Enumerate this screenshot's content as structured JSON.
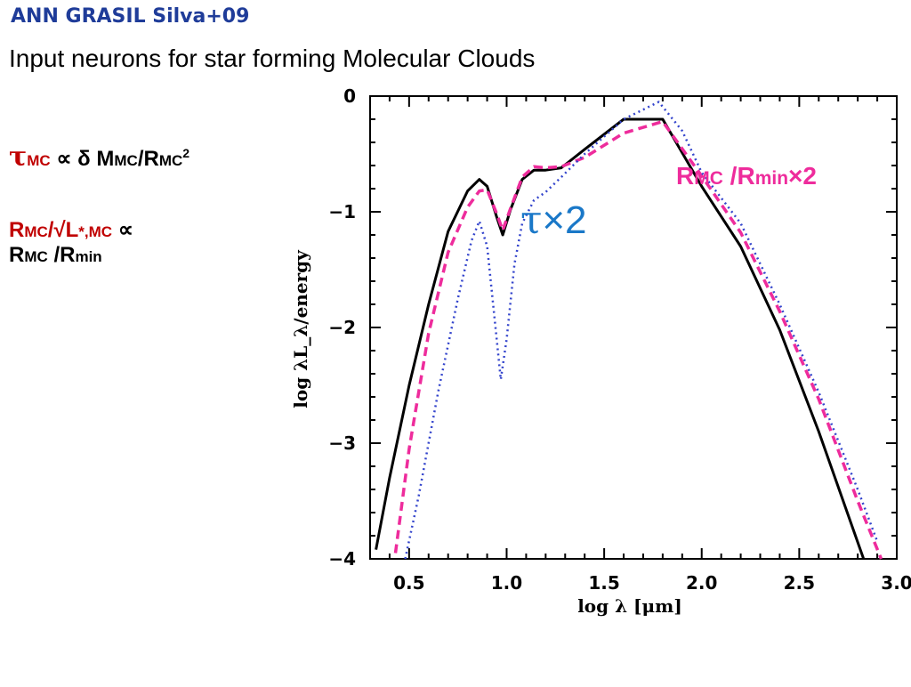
{
  "header": {
    "tag": "ANN GRASIL Silva+09",
    "title": "Input neurons for star forming Molecular Clouds"
  },
  "formulas": {
    "f1": {
      "tau": "τ",
      "tau_sub": "MC",
      "prop": "∝",
      "delta": "δ",
      "m": "M",
      "m_sub": "MC",
      "slash": "/R",
      "r_sub": "MC",
      "exp": "2"
    },
    "f2": {
      "r": "R",
      "r_sub": "MC",
      "slash": "/√L",
      "l_sub": "*,MC",
      "prop": "∝",
      "r2": "R",
      "r2_sub": "MC",
      "mid": " /R",
      "min": "min"
    }
  },
  "annotations": {
    "rmc": {
      "r": "R",
      "sub1": "MC",
      "mid": " /R",
      "sub2": "min",
      "mult": "×2"
    },
    "tau": {
      "tau": "τ",
      "mult": "×2"
    }
  },
  "colors": {
    "header": "#1f3c99",
    "solid": "#000000",
    "dashed": "#ee2c9c",
    "dotted": "#3344cc",
    "formula_red": "#c00000"
  },
  "chart_data": {
    "type": "line",
    "xlabel": "log λ [μm]",
    "ylabel": "log λL_λ/energy",
    "xlim": [
      0.3,
      3.0
    ],
    "ylim": [
      -4,
      0
    ],
    "xticks": [
      "0.5",
      "1.0",
      "1.5",
      "2.0",
      "2.5",
      "3.0"
    ],
    "yticks": [
      "0",
      "−1",
      "−2",
      "−3",
      "−4"
    ],
    "series": [
      {
        "style": "solid",
        "color": "#000000",
        "x": [
          0.33,
          0.4,
          0.5,
          0.6,
          0.7,
          0.8,
          0.86,
          0.9,
          0.95,
          0.98,
          1.02,
          1.08,
          1.14,
          1.2,
          1.28,
          1.4,
          1.6,
          1.8,
          2.0,
          2.2,
          2.4,
          2.6,
          2.83
        ],
        "y": [
          -3.92,
          -3.3,
          -2.5,
          -1.8,
          -1.17,
          -0.82,
          -0.72,
          -0.78,
          -1.05,
          -1.2,
          -0.98,
          -0.72,
          -0.64,
          -0.64,
          -0.62,
          -0.46,
          -0.2,
          -0.2,
          -0.78,
          -1.3,
          -2.02,
          -2.9,
          -4.0
        ]
      },
      {
        "style": "dashed",
        "color": "#ee2c9c",
        "x": [
          0.43,
          0.5,
          0.6,
          0.7,
          0.8,
          0.86,
          0.9,
          0.95,
          0.98,
          1.02,
          1.08,
          1.14,
          1.2,
          1.28,
          1.4,
          1.6,
          1.8,
          2.0,
          2.2,
          2.4,
          2.6,
          2.8,
          2.92
        ],
        "y": [
          -3.95,
          -3.05,
          -2.05,
          -1.35,
          -0.96,
          -0.82,
          -0.81,
          -1.02,
          -1.16,
          -0.97,
          -0.7,
          -0.61,
          -0.62,
          -0.61,
          -0.53,
          -0.32,
          -0.22,
          -0.69,
          -1.18,
          -1.86,
          -2.62,
          -3.5,
          -4.0
        ]
      },
      {
        "style": "dotted",
        "color": "#3344cc",
        "x": [
          0.48,
          0.55,
          0.65,
          0.75,
          0.82,
          0.86,
          0.9,
          0.94,
          0.97,
          1.0,
          1.04,
          1.08,
          1.14,
          1.2,
          1.28,
          1.4,
          1.6,
          1.78,
          1.9,
          2.0,
          2.2,
          2.4,
          2.6,
          2.8,
          2.9
        ],
        "y": [
          -4.0,
          -3.45,
          -2.55,
          -1.75,
          -1.25,
          -1.08,
          -1.3,
          -1.95,
          -2.45,
          -2.1,
          -1.45,
          -1.1,
          -0.9,
          -0.83,
          -0.7,
          -0.5,
          -0.2,
          -0.05,
          -0.3,
          -0.66,
          -1.1,
          -1.8,
          -2.56,
          -3.4,
          -3.85
        ]
      }
    ]
  }
}
